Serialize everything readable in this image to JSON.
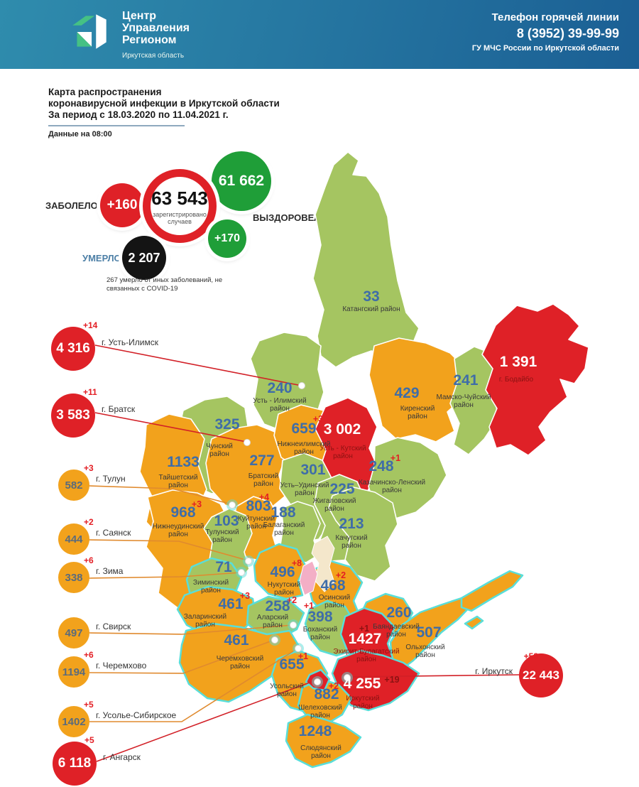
{
  "header": {
    "org_line1": "Центр",
    "org_line2": "Управления",
    "org_line3": "Регионом",
    "org_region": "Иркутская область",
    "hotline_label": "Телефон горячей линии",
    "hotline_phone": "8 (3952) 39-99-99",
    "hotline_org": "ГУ МЧС России по Иркутской области"
  },
  "title": {
    "line1": "Карта распространения",
    "line2": "коронавирусной инфекции в Иркутской области",
    "line3": "За период с 18.03.2020 по 11.04.2021 г.",
    "asof": "Данные на 08:00"
  },
  "stats": {
    "infected_label": "ЗАБОЛЕЛО",
    "infected_delta": "+160",
    "total_value": "63 543",
    "total_caption": "зарегистрировано случаев",
    "recovered_value": "61 662",
    "recovered_delta": "+170",
    "recovered_label": "ВЫЗДОРОВЕЛО",
    "deaths_label": "УМЕРЛО",
    "deaths_value": "2 207",
    "deaths_note": "267 умерло от иных заболеваний, не связанных с COVID-19"
  },
  "colors": {
    "green": "#A5C561",
    "orange": "#F2A21C",
    "red": "#DF2127",
    "region_number": "#3F6DA8",
    "value_on_red": "#FFFFFF",
    "delta": "#E31E24",
    "delta_on_red": "#8C1212",
    "name_text": "#3A3A3A",
    "name_on_red": "#8C1212",
    "teal": "#59DED9",
    "line_red": "#D22027",
    "line_orange": "#E08A2E",
    "callout_orange_text": "#5A6B7C",
    "callout_red_text": "#FFFFFF",
    "recovered_green": "#1F9E38",
    "deaths_black": "#141414",
    "umero_label": "#4C7FA6",
    "header_start": "#2F8CAD",
    "header_end": "#1B5F94",
    "logo_green": "#45C184",
    "patch_beige": "#F4E7CB",
    "patch_pink": "#F3AFC6"
  },
  "map": {
    "regions": [
      {
        "id": "katangsky",
        "value": "33",
        "delta": "",
        "level": "green",
        "name_lines": [
          "Катангский район"
        ]
      },
      {
        "id": "ust_ilimsky",
        "value": "240",
        "delta": "",
        "level": "green",
        "name_lines": [
          "Усть - Илимский",
          "район"
        ]
      },
      {
        "id": "kirensky",
        "value": "429",
        "delta": "",
        "level": "orange",
        "name_lines": [
          "Киренский",
          "район"
        ]
      },
      {
        "id": "mamsko",
        "value": "241",
        "delta": "",
        "level": "green",
        "name_lines": [
          "Мамско-Чуйский",
          "район"
        ]
      },
      {
        "id": "bodaibinsky",
        "value": "1 391",
        "delta": "",
        "level": "red",
        "name_lines": [
          "г. Бодайбо"
        ]
      },
      {
        "id": "chunsky",
        "value": "325",
        "delta": "",
        "level": "green",
        "name_lines": [
          "Чунский",
          "район"
        ]
      },
      {
        "id": "taishetsky",
        "value": "1133",
        "delta": "",
        "level": "orange",
        "name_lines": [
          "Тайшетский",
          "район"
        ]
      },
      {
        "id": "bratsky",
        "value": "277",
        "delta": "",
        "level": "orange",
        "name_lines": [
          "Братский",
          "район"
        ]
      },
      {
        "id": "nizhneilimsky",
        "value": "659",
        "delta": "+3",
        "level": "orange",
        "name_lines": [
          "Нижнеилимский",
          "район"
        ]
      },
      {
        "id": "ust_kutsky",
        "value": "3 002",
        "delta": "",
        "level": "red",
        "name_lines": [
          "Усть - Кутский",
          "район"
        ]
      },
      {
        "id": "kazachinsky",
        "value": "248",
        "delta": "+1",
        "level": "green",
        "name_lines": [
          "Казачинско-Ленский",
          "район"
        ]
      },
      {
        "id": "ust_udinsky",
        "value": "301",
        "delta": "",
        "level": "green",
        "name_lines": [
          "Усть–Удинский",
          "район"
        ]
      },
      {
        "id": "zhigalovsky",
        "value": "225",
        "delta": "",
        "level": "green",
        "name_lines": [
          "Жигаловский",
          "район"
        ]
      },
      {
        "id": "nizhneudinsky",
        "value": "968",
        "delta": "+3",
        "level": "orange",
        "name_lines": [
          "Нижнеудинский",
          "район"
        ]
      },
      {
        "id": "kuitunsky",
        "value": "803",
        "delta": "+4",
        "level": "orange",
        "name_lines": [
          "Куйтунский",
          "район"
        ]
      },
      {
        "id": "balagansky",
        "value": "188",
        "delta": "",
        "level": "green",
        "name_lines": [
          "Балаганский",
          "район"
        ]
      },
      {
        "id": "tulunsky",
        "value": "103",
        "delta": "",
        "level": "green",
        "name_lines": [
          "Тулунский",
          "район"
        ]
      },
      {
        "id": "kachugsky",
        "value": "213",
        "delta": "",
        "level": "green",
        "name_lines": [
          "Качугский",
          "район"
        ]
      },
      {
        "id": "ziminsky",
        "value": "71",
        "delta": "",
        "level": "green",
        "name_lines": [
          "Зиминский",
          "район"
        ]
      },
      {
        "id": "zalarinsky",
        "value": "461",
        "delta": "+3",
        "level": "orange",
        "name_lines": [
          "Заларинский",
          "район"
        ]
      },
      {
        "id": "nukutsky",
        "value": "496",
        "delta": "+8",
        "level": "orange",
        "name_lines": [
          "Нукутский",
          "район"
        ]
      },
      {
        "id": "osinsky",
        "value": "468",
        "delta": "+2",
        "level": "orange",
        "name_lines": [
          "Осинский",
          "район"
        ]
      },
      {
        "id": "alarsky",
        "value": "258",
        "delta": "+2",
        "level": "green",
        "name_lines": [
          "Аларский",
          "район"
        ]
      },
      {
        "id": "bokhansky",
        "value": "398",
        "delta": "+1",
        "level": "green",
        "name_lines": [
          "Боханский",
          "район"
        ]
      },
      {
        "id": "bayandaevsky",
        "value": "260",
        "delta": "",
        "level": "orange",
        "name_lines": [
          "Баяндаевский",
          "район"
        ]
      },
      {
        "id": "olkhonsky",
        "value": "507",
        "delta": "",
        "level": "orange",
        "name_lines": [
          "Ольхонский",
          "район"
        ]
      },
      {
        "id": "ekhirit",
        "value": "1427",
        "delta": "+1",
        "level": "red",
        "name_lines": [
          "Эхирит-Булагатский",
          "район"
        ]
      },
      {
        "id": "cheremkhovsky",
        "value": "461",
        "delta": "",
        "level": "orange",
        "name_lines": [
          "Черемховский",
          "район"
        ]
      },
      {
        "id": "usolsky",
        "value": "655",
        "delta": "+1",
        "level": "orange",
        "name_lines": [
          "Усольский",
          "район"
        ]
      },
      {
        "id": "irkutsky",
        "value": "4 255",
        "delta": "+19",
        "level": "red",
        "name_lines": [
          "Иркутский",
          "район"
        ]
      },
      {
        "id": "shelekhovsky",
        "value": "882",
        "delta": "+2",
        "level": "orange",
        "name_lines": [
          "Шелеховский",
          "район"
        ]
      },
      {
        "id": "slyudyansky",
        "value": "1248",
        "delta": "",
        "level": "orange",
        "name_lines": [
          "Слюдянский",
          "район"
        ]
      },
      {
        "id": "angarsky",
        "value": "",
        "delta": "",
        "level": "red",
        "name_lines": []
      }
    ]
  },
  "callouts": [
    {
      "id": "ust-ilimsk",
      "city": "г. Усть-Илимск",
      "value": "4 316",
      "delta": "+14",
      "color": "red"
    },
    {
      "id": "bratsk",
      "city": "г. Братск",
      "value": "3 583",
      "delta": "+11",
      "color": "red"
    },
    {
      "id": "tulun",
      "city": "г. Тулун",
      "value": "582",
      "delta": "+3",
      "color": "orange"
    },
    {
      "id": "sayansk",
      "city": "г. Саянск",
      "value": "444",
      "delta": "+2",
      "color": "orange"
    },
    {
      "id": "zima",
      "city": "г. Зима",
      "value": "338",
      "delta": "+6",
      "color": "orange"
    },
    {
      "id": "svirsk",
      "city": "г. Свирск",
      "value": "497",
      "delta": "",
      "color": "orange"
    },
    {
      "id": "cheremkhovo",
      "city": "г. Черемхово",
      "value": "1194",
      "delta": "+6",
      "color": "orange"
    },
    {
      "id": "usolye",
      "city": "г. Усолье-Сибирское",
      "value": "1402",
      "delta": "+5",
      "color": "orange"
    },
    {
      "id": "angarsk",
      "city": "г. Ангарск",
      "value": "6 118",
      "delta": "+5",
      "color": "red"
    },
    {
      "id": "irkutsk",
      "city": "г. Иркутск",
      "value": "22 443",
      "delta": "+58",
      "color": "red"
    }
  ]
}
